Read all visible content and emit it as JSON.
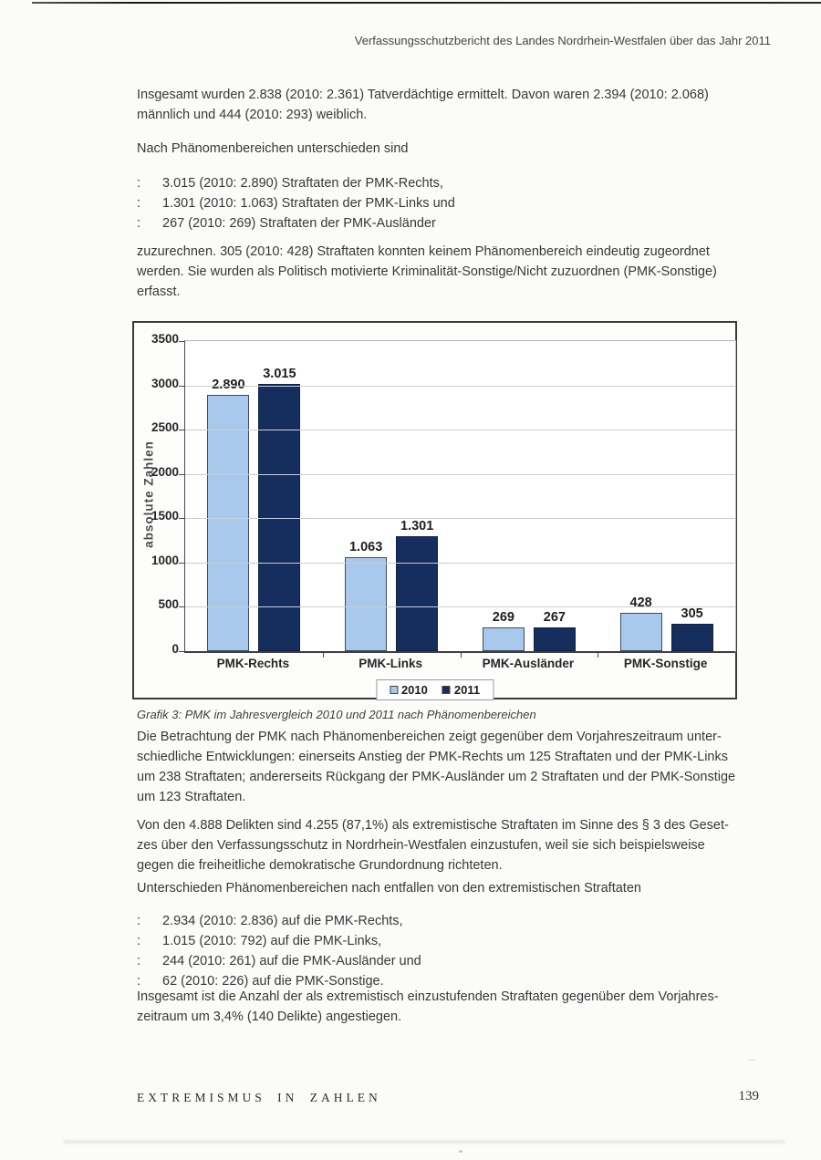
{
  "page_header": "Verfassungsschutzbericht des Landes Nordrhein-Westfalen über das Jahr 2011",
  "content": {
    "p_totals": [
      "Insgesamt wurden 2.838 (2010: 2.361) Tatverdächtige ermittelt. Davon waren 2.394 (2010: 2.068)",
      "männlich und 444 (2010: 293) weiblich."
    ],
    "p_intro_phenomena": "Nach Phänomenbereichen unterschieden sind",
    "list_phenomena": {
      "marker": ":",
      "items": [
        "3.015 (2010: 2.890) Straftaten der PMK-Rechts,",
        "1.301 (2010: 1.063) Straftaten der PMK-Links und",
        "267 (2010: 269) Straftaten der PMK-Ausländer"
      ]
    },
    "p_assignment": [
      "zuzurechnen. 305 (2010: 428) Straftaten konnten keinem Phänomenbereich eindeutig zugeordnet",
      "werden. Sie wurden als Politisch motivierte Kriminalität-Sonstige/Nicht zuzuordnen (PMK-Sonstige)",
      "erfasst."
    ],
    "chart_caption": "Grafik 3: PMK im Jahresvergleich 2010 und 2011 nach Phänomenbereichen",
    "p_comparison": [
      "Die Betrachtung der PMK nach Phänomenbereichen zeigt gegenüber dem Vorjahreszeitraum unter-",
      "schiedliche Entwicklungen: einerseits Anstieg der PMK-Rechts um 125 Straftaten und der PMK-Links",
      "um 238 Straftaten; andererseits Rückgang der PMK-Ausländer um 2 Straftaten und der PMK-Sonstige",
      "um 123 Straftaten."
    ],
    "p_extremist": [
      "Von den 4.888 Delikten sind 4.255 (87,1%) als extremistische Straftaten im Sinne des § 3 des Geset-",
      "zes über den Verfassungsschutz in Nordrhein-Westfalen einzustufen, weil sie sich beispielsweise",
      "gegen die freiheitliche demokratische Grundordnung richteten."
    ],
    "p_breakdown_intro": "Unterschieden Phänomenbereichen nach entfallen von den extremistischen Straftaten",
    "list_extremist": {
      "marker": ":",
      "items": [
        "2.934 (2010: 2.836) auf die PMK-Rechts,",
        "1.015 (2010: 792) auf die PMK-Links,",
        "244 (2010: 261) auf die PMK-Ausländer und",
        "62 (2010: 226) auf die PMK-Sonstige."
      ]
    },
    "p_increase": [
      "Insgesamt ist die Anzahl der als extremistisch einzustufenden Straftaten gegenüber dem Vorjahres-",
      "zeitraum um 3,4% (140 Delikte) angestiegen."
    ]
  },
  "footer": {
    "section": "EXTREMISMUS IN ZAHLEN",
    "page_number": "139"
  },
  "chart_data": {
    "type": "bar",
    "title": "",
    "xlabel": "",
    "ylabel": "absolute Zahlen",
    "ylim": [
      0,
      3500
    ],
    "ytick_step": 500,
    "grid": true,
    "legend_position": "bottom-center",
    "categories": [
      "PMK-Rechts",
      "PMK-Links",
      "PMK-Ausländer",
      "PMK-Sonstige"
    ],
    "series": [
      {
        "name": "2010",
        "color": "#a8c8ec",
        "border_color": "#3c4a63",
        "values": [
          2890,
          1063,
          269,
          428
        ],
        "labels": [
          "2.890",
          "1.063",
          "269",
          "428"
        ]
      },
      {
        "name": "2011",
        "color": "#152e5e",
        "border_color": "#0e2048",
        "values": [
          3015,
          1301,
          267,
          305
        ],
        "labels": [
          "3.015",
          "1.301",
          "267",
          "305"
        ]
      }
    ]
  }
}
